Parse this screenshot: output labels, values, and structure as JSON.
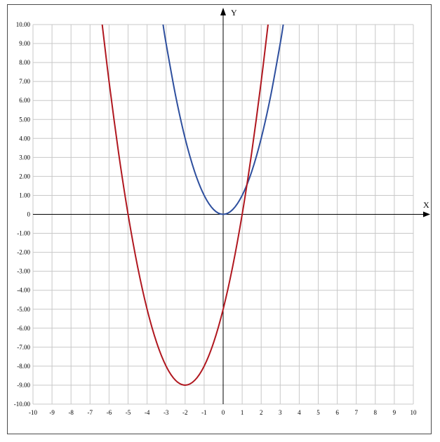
{
  "chart_data": {
    "type": "line",
    "title": "",
    "xlabel": "X",
    "ylabel": "Y",
    "xlim": [
      -10,
      10
    ],
    "ylim": [
      -10,
      10
    ],
    "grid": true,
    "x_ticks": [
      "-10",
      "-9",
      "-8",
      "-7",
      "-6",
      "-5",
      "-4",
      "-3",
      "-2",
      "-1",
      "0",
      "1",
      "2",
      "3",
      "4",
      "5",
      "6",
      "7",
      "8",
      "9",
      "10"
    ],
    "y_ticks": [
      "-10.00",
      "-9.00",
      "-8.00",
      "-7.00",
      "-6.00",
      "-5.00",
      "-4.00",
      "-3.00",
      "-2.00",
      "-1.00",
      "0",
      "1.00",
      "2.00",
      "3.00",
      "4.00",
      "5.00",
      "6.00",
      "7.00",
      "8.00",
      "9.00",
      "10.00"
    ],
    "series": [
      {
        "color": "#2e4f9e",
        "x": [
          -3.16,
          -3,
          -2.5,
          -2,
          -1.5,
          -1,
          -0.5,
          0,
          0.5,
          1,
          1.5,
          2,
          2.5,
          3,
          3.16
        ],
        "y": [
          10,
          9,
          6.25,
          4,
          2.25,
          1,
          0.25,
          0,
          0.25,
          1,
          2.25,
          4,
          6.25,
          9,
          10
        ]
      },
      {
        "color": "#b0171f",
        "x": [
          -6.36,
          -6,
          -5.5,
          -5,
          -4.5,
          -4,
          -3.5,
          -3,
          -2.5,
          -2,
          -1.5,
          -1,
          -0.5,
          0,
          0.5,
          1,
          1.5,
          2,
          2.36
        ],
        "y": [
          10,
          7,
          3.25,
          0,
          -2.75,
          -5,
          -6.75,
          -8,
          -8.75,
          -9,
          -8.75,
          -8,
          -6.75,
          -5,
          -2.75,
          0,
          3.25,
          7,
          10
        ]
      }
    ]
  }
}
